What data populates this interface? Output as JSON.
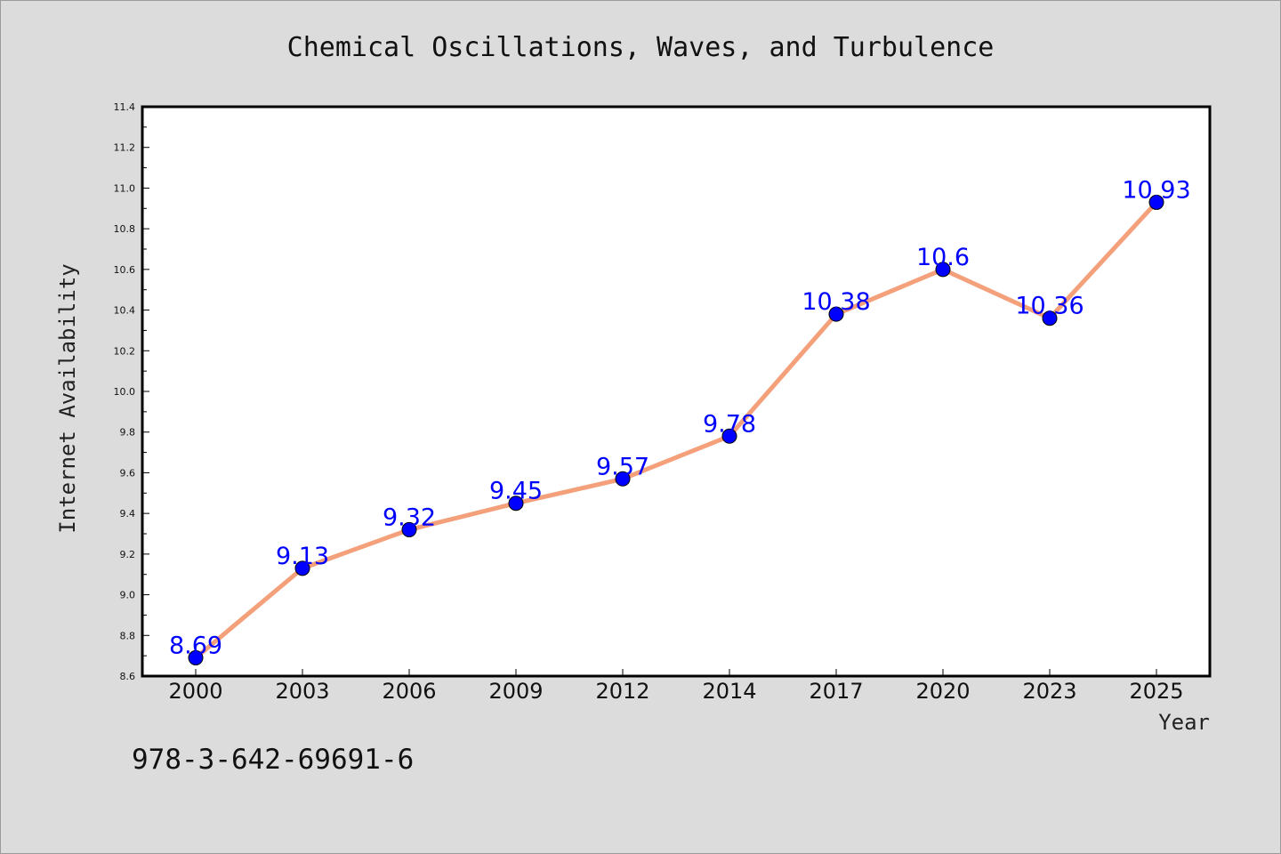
{
  "chart_data": {
    "type": "line",
    "title": "Chemical Oscillations, Waves, and Turbulence",
    "xlabel": "Year",
    "ylabel": "Internet Availability",
    "categories": [
      "2000",
      "2003",
      "2006",
      "2009",
      "2012",
      "2014",
      "2017",
      "2020",
      "2023",
      "2025"
    ],
    "series": [
      {
        "values": [
          8.69,
          9.13,
          9.32,
          9.45,
          9.57,
          9.78,
          10.38,
          10.6,
          10.36,
          10.93
        ]
      }
    ],
    "data_labels": [
      "8.69",
      "9.13",
      "9.32",
      "9.45",
      "9.57",
      "9.78",
      "10.38",
      "10.6",
      "10.36",
      "10.93"
    ],
    "ylim": [
      8.6,
      11.4
    ],
    "yticks": [
      "8.6",
      "8.8",
      "9.0",
      "9.2",
      "9.4",
      "9.6",
      "9.8",
      "10.0",
      "10.2",
      "10.4",
      "10.6",
      "10.8",
      "11.0",
      "11.2",
      "11.4"
    ],
    "grid": false,
    "legend": "none",
    "colors": {
      "line": "#f4a07a",
      "marker": "#0000ff",
      "data_label": "#0000ff",
      "background": "#dcdcdc",
      "plot_background": "#ffffff"
    }
  },
  "footer": {
    "isbn": "978-3-642-69691-6"
  }
}
